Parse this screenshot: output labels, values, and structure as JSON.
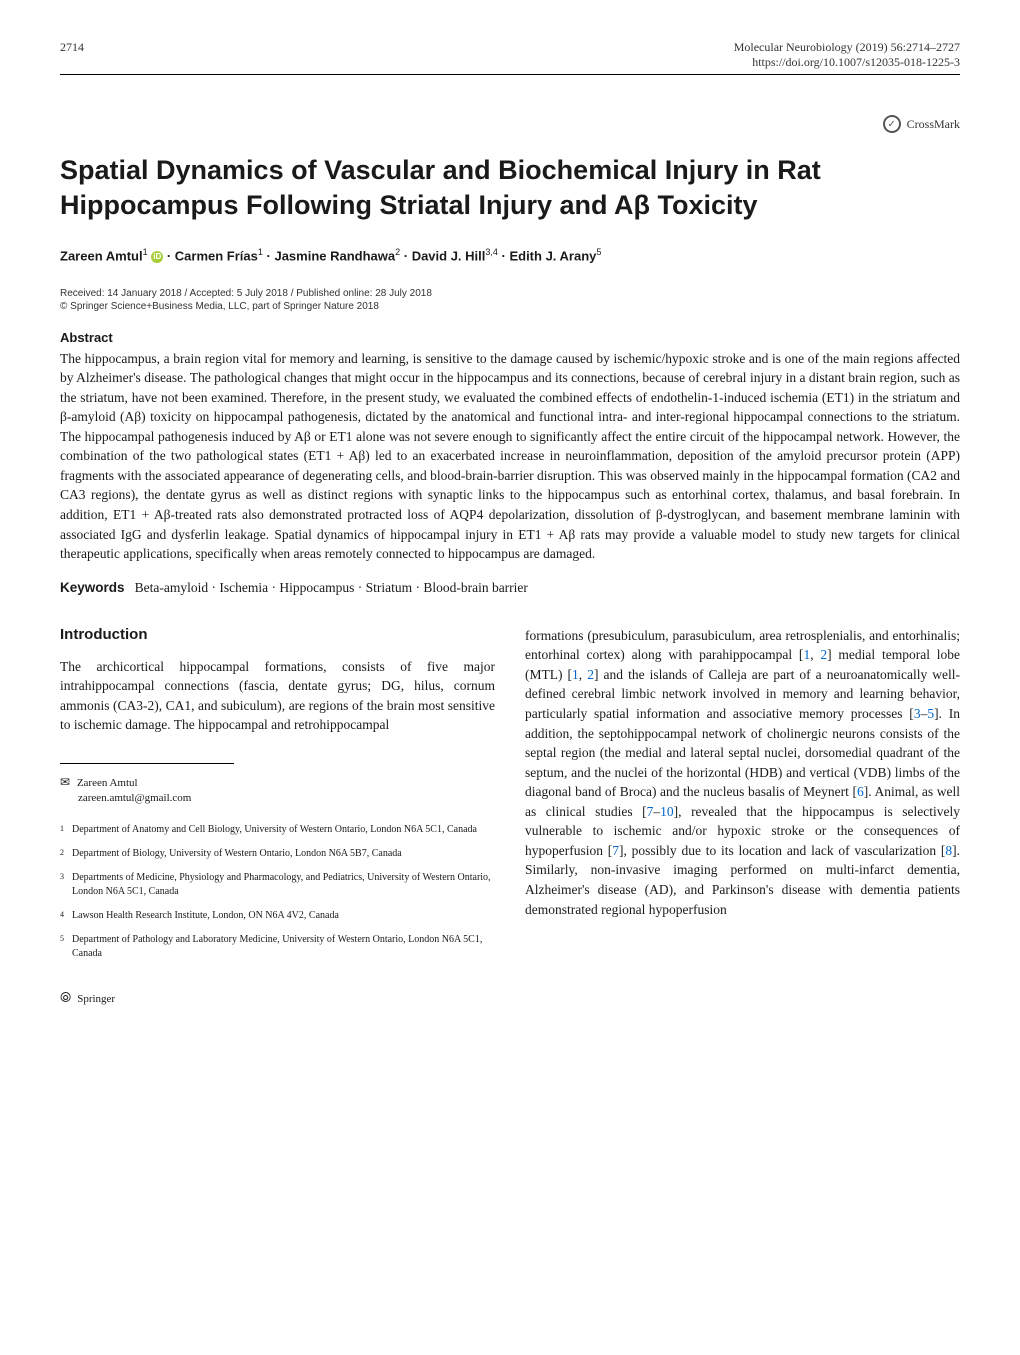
{
  "header": {
    "journal_citation": "Molecular Neurobiology (2019) 56:2714–2727",
    "doi": "https://doi.org/10.1007/s12035-018-1225-3",
    "page_number": "2714"
  },
  "crossmark": {
    "label": "CrossMark"
  },
  "title": "Spatial Dynamics of Vascular and Biochemical Injury in Rat Hippocampus Following Striatal Injury and Aβ Toxicity",
  "authors_html": "Zareen Amtul<sup>1</sup> <span class='orcid-icon'>iD</span> · Carmen Frías<sup>1</sup> · Jasmine Randhawa<sup>2</sup> · David J. Hill<sup>3,4</sup> · Edith J. Arany<sup>5</sup>",
  "pub_dates": "Received: 14 January 2018 / Accepted: 5 July 2018 / Published online: 28 July 2018",
  "copyright": "© Springer Science+Business Media, LLC, part of Springer Nature 2018",
  "abstract": {
    "heading": "Abstract",
    "text": "The hippocampus, a brain region vital for memory and learning, is sensitive to the damage caused by ischemic/hypoxic stroke and is one of the main regions affected by Alzheimer's disease. The pathological changes that might occur in the hippocampus and its connections, because of cerebral injury in a distant brain region, such as the striatum, have not been examined. Therefore, in the present study, we evaluated the combined effects of endothelin-1-induced ischemia (ET1) in the striatum and β-amyloid (Aβ) toxicity on hippocampal pathogenesis, dictated by the anatomical and functional intra- and inter-regional hippocampal connections to the striatum. The hippocampal pathogenesis induced by Aβ or ET1 alone was not severe enough to significantly affect the entire circuit of the hippocampal network. However, the combination of the two pathological states (ET1 + Aβ) led to an exacerbated increase in neuroinflammation, deposition of the amyloid precursor protein (APP) fragments with the associated appearance of degenerating cells, and blood-brain-barrier disruption. This was observed mainly in the hippocampal formation (CA2 and CA3 regions), the dentate gyrus as well as distinct regions with synaptic links to the hippocampus such as entorhinal cortex, thalamus, and basal forebrain. In addition, ET1 + Aβ-treated rats also demonstrated protracted loss of AQP4 depolarization, dissolution of β-dystroglycan, and basement membrane laminin with associated IgG and dysferlin leakage. Spatial dynamics of hippocampal injury in ET1 + Aβ rats may provide a valuable model to study new targets for clinical therapeutic applications, specifically when areas remotely connected to hippocampus are damaged."
  },
  "keywords": {
    "label": "Keywords",
    "text": "Beta-amyloid · Ischemia · Hippocampus · Striatum · Blood-brain barrier"
  },
  "introduction": {
    "heading": "Introduction",
    "left_text": "The archicortical hippocampal formations, consists of five major intrahippocampal connections (fascia, dentate gyrus; DG, hilus, cornum ammonis (CA3-2), CA1, and subiculum), are regions of the brain most sensitive to ischemic damage. The hippocampal and retrohippocampal",
    "right_text_html": "formations (presubiculum, parasubiculum, area retrosplenialis, and entorhinalis; entorhinal cortex) along with parahippocampal [<a class='ref-link'>1</a>, <a class='ref-link'>2</a>] medial temporal lobe (MTL) [<a class='ref-link'>1</a>, <a class='ref-link'>2</a>] and the islands of Calleja are part of a neuroanatomically well-defined cerebral limbic network involved in memory and learning behavior, particularly spatial information and associative memory processes [<a class='ref-link'>3</a>–<a class='ref-link'>5</a>]. In addition, the septohippocampal network of cholinergic neurons consists of the septal region (the medial and lateral septal nuclei, dorsomedial quadrant of the septum, and the nuclei of the horizontal (HDB) and vertical (VDB) limbs of the diagonal band of Broca) and the nucleus basalis of Meynert [<a class='ref-link'>6</a>]. Animal, as well as clinical studies [<a class='ref-link'>7</a>–<a class='ref-link'>10</a>], revealed that the hippocampus is selectively vulnerable to ischemic and/or hypoxic stroke or the consequences of hypoperfusion [<a class='ref-link'>7</a>], possibly due to its location and lack of vascularization [<a class='ref-link'>8</a>]. Similarly, non-invasive imaging performed on multi-infarct dementia, Alzheimer's disease (AD), and Parkinson's disease with dementia patients demonstrated regional hypoperfusion"
  },
  "corresponding": {
    "name": "Zareen Amtul",
    "email": "zareen.amtul@gmail.com"
  },
  "affiliations": [
    {
      "num": "1",
      "text": "Department of Anatomy and Cell Biology, University of Western Ontario, London N6A 5C1, Canada"
    },
    {
      "num": "2",
      "text": "Department of Biology, University of Western Ontario, London N6A 5B7, Canada"
    },
    {
      "num": "3",
      "text": "Departments of Medicine, Physiology and Pharmacology, and Pediatrics, University of Western Ontario, London N6A 5C1, Canada"
    },
    {
      "num": "4",
      "text": "Lawson Health Research Institute, London, ON N6A 4V2, Canada"
    },
    {
      "num": "5",
      "text": "Department of Pathology and Laboratory Medicine, University of Western Ontario, London N6A 5C1, Canada"
    }
  ],
  "footer": {
    "publisher": "Springer"
  }
}
